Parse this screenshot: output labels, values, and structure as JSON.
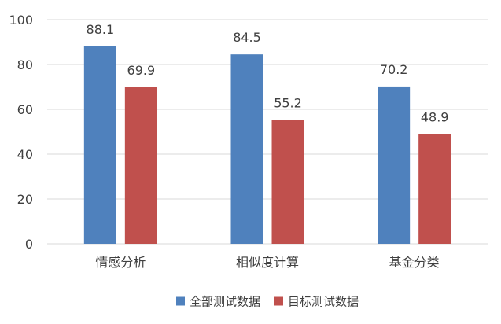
{
  "chart_data": {
    "type": "bar",
    "categories": [
      "情感分析",
      "相似度计算",
      "基金分类"
    ],
    "series": [
      {
        "name": "全部测试数据",
        "values": [
          88.1,
          84.5,
          70.2
        ],
        "color": "#4f81bd"
      },
      {
        "name": "目标测试数据",
        "values": [
          69.9,
          55.2,
          48.9
        ],
        "color": "#c0504d"
      }
    ],
    "ylim": [
      0,
      100
    ],
    "yticks": [
      0,
      20,
      40,
      60,
      80,
      100
    ],
    "grid": true,
    "legend": "bottom",
    "data_labels": true
  }
}
